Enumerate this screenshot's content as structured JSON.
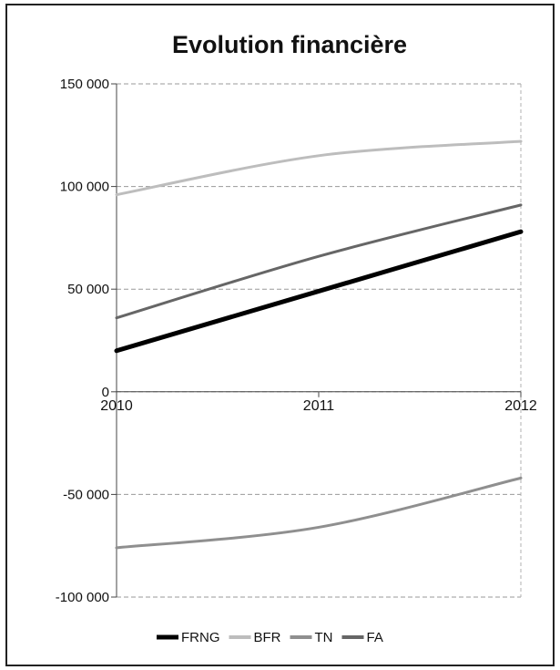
{
  "chart_data": {
    "type": "line",
    "title": "Evolution financière",
    "xlabel": "",
    "ylabel": "",
    "x": [
      "2010",
      "2011",
      "2012"
    ],
    "ylim": [
      -100000,
      150000
    ],
    "yticks": [
      150000,
      100000,
      50000,
      0,
      -50000,
      -100000
    ],
    "ytick_labels": [
      "150 000",
      "100 000",
      "50 000",
      "0",
      "-50 000",
      "-100 000"
    ],
    "grid": true,
    "legend_position": "bottom",
    "series": [
      {
        "name": "FRNG",
        "values": [
          20000,
          49000,
          78000
        ],
        "color": "#000000",
        "width": 5
      },
      {
        "name": "BFR",
        "values": [
          96000,
          115000,
          122000
        ],
        "color": "#bdbdbd",
        "width": 3
      },
      {
        "name": "TN",
        "values": [
          -76000,
          -66000,
          -42000
        ],
        "color": "#8f8f8f",
        "width": 3
      },
      {
        "name": "FA",
        "values": [
          36000,
          66000,
          91000
        ],
        "color": "#666666",
        "width": 3
      }
    ]
  }
}
